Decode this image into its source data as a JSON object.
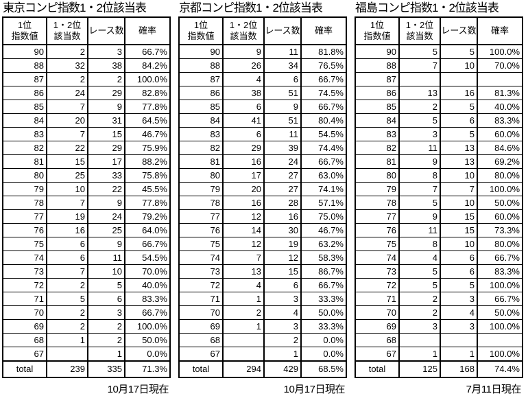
{
  "page": {
    "background": "#ffffff",
    "text_color": "#000000",
    "border_color": "#000000"
  },
  "header_labels": {
    "col1_line1": "1位",
    "col1_line2": "指数値",
    "col2_line1": "1・2位",
    "col2_line2": "該当数",
    "col3": "レース数",
    "col4": "確率"
  },
  "tables": [
    {
      "title": "東京コンピ指数1・2位該当表",
      "as_of_date": "10月17日現在",
      "rows": [
        [
          "90",
          "2",
          "3",
          "66.7%"
        ],
        [
          "88",
          "32",
          "38",
          "84.2%"
        ],
        [
          "87",
          "2",
          "2",
          "100.0%"
        ],
        [
          "86",
          "24",
          "29",
          "82.8%"
        ],
        [
          "85",
          "7",
          "9",
          "77.8%"
        ],
        [
          "84",
          "20",
          "31",
          "64.5%"
        ],
        [
          "83",
          "7",
          "15",
          "46.7%"
        ],
        [
          "82",
          "22",
          "29",
          "75.9%"
        ],
        [
          "81",
          "15",
          "17",
          "88.2%"
        ],
        [
          "80",
          "25",
          "33",
          "75.8%"
        ],
        [
          "79",
          "10",
          "22",
          "45.5%"
        ],
        [
          "78",
          "7",
          "9",
          "77.8%"
        ],
        [
          "77",
          "19",
          "24",
          "79.2%"
        ],
        [
          "76",
          "16",
          "25",
          "64.0%"
        ],
        [
          "75",
          "6",
          "9",
          "66.7%"
        ],
        [
          "74",
          "6",
          "11",
          "54.5%"
        ],
        [
          "73",
          "7",
          "10",
          "70.0%"
        ],
        [
          "72",
          "2",
          "5",
          "40.0%"
        ],
        [
          "71",
          "5",
          "6",
          "83.3%"
        ],
        [
          "70",
          "2",
          "3",
          "66.7%"
        ],
        [
          "69",
          "2",
          "2",
          "100.0%"
        ],
        [
          "68",
          "1",
          "2",
          "50.0%"
        ],
        [
          "67",
          "",
          "1",
          "0.0%"
        ]
      ],
      "total_row": [
        "total",
        "239",
        "335",
        "71.3%"
      ]
    },
    {
      "title": "京都コンピ指数1・2位該当表",
      "as_of_date": "10月17日現在",
      "rows": [
        [
          "90",
          "9",
          "11",
          "81.8%"
        ],
        [
          "88",
          "26",
          "34",
          "76.5%"
        ],
        [
          "87",
          "4",
          "6",
          "66.7%"
        ],
        [
          "86",
          "38",
          "51",
          "74.5%"
        ],
        [
          "85",
          "6",
          "9",
          "66.7%"
        ],
        [
          "84",
          "41",
          "51",
          "80.4%"
        ],
        [
          "83",
          "6",
          "11",
          "54.5%"
        ],
        [
          "82",
          "29",
          "39",
          "74.4%"
        ],
        [
          "81",
          "16",
          "24",
          "66.7%"
        ],
        [
          "80",
          "17",
          "27",
          "63.0%"
        ],
        [
          "79",
          "20",
          "27",
          "74.1%"
        ],
        [
          "78",
          "16",
          "28",
          "57.1%"
        ],
        [
          "77",
          "12",
          "16",
          "75.0%"
        ],
        [
          "76",
          "14",
          "30",
          "46.7%"
        ],
        [
          "75",
          "12",
          "19",
          "63.2%"
        ],
        [
          "74",
          "7",
          "12",
          "58.3%"
        ],
        [
          "73",
          "13",
          "15",
          "86.7%"
        ],
        [
          "72",
          "4",
          "6",
          "66.7%"
        ],
        [
          "71",
          "1",
          "3",
          "33.3%"
        ],
        [
          "70",
          "2",
          "4",
          "50.0%"
        ],
        [
          "69",
          "1",
          "3",
          "33.3%"
        ],
        [
          "68",
          "",
          "2",
          "0.0%"
        ],
        [
          "67",
          "",
          "1",
          "0.0%"
        ]
      ],
      "total_row": [
        "total",
        "294",
        "429",
        "68.5%"
      ]
    },
    {
      "title": "福島コンピ指数1・2位該当表",
      "as_of_date": "7月11日現在",
      "rows": [
        [
          "90",
          "5",
          "5",
          "100.0%"
        ],
        [
          "88",
          "7",
          "10",
          "70.0%"
        ],
        [
          "87",
          "",
          "",
          ""
        ],
        [
          "86",
          "13",
          "16",
          "81.3%"
        ],
        [
          "85",
          "2",
          "5",
          "40.0%"
        ],
        [
          "84",
          "5",
          "6",
          "83.3%"
        ],
        [
          "83",
          "3",
          "5",
          "60.0%"
        ],
        [
          "82",
          "11",
          "13",
          "84.6%"
        ],
        [
          "81",
          "9",
          "13",
          "69.2%"
        ],
        [
          "80",
          "8",
          "10",
          "80.0%"
        ],
        [
          "79",
          "7",
          "7",
          "100.0%"
        ],
        [
          "78",
          "5",
          "10",
          "50.0%"
        ],
        [
          "77",
          "9",
          "15",
          "60.0%"
        ],
        [
          "76",
          "11",
          "15",
          "73.3%"
        ],
        [
          "75",
          "8",
          "10",
          "80.0%"
        ],
        [
          "74",
          "4",
          "6",
          "66.7%"
        ],
        [
          "73",
          "5",
          "6",
          "83.3%"
        ],
        [
          "72",
          "5",
          "5",
          "100.0%"
        ],
        [
          "71",
          "2",
          "3",
          "66.7%"
        ],
        [
          "70",
          "2",
          "4",
          "50.0%"
        ],
        [
          "69",
          "3",
          "3",
          "100.0%"
        ],
        [
          "68",
          "",
          "",
          ""
        ],
        [
          "67",
          "1",
          "1",
          "100.0%"
        ]
      ],
      "total_row": [
        "total",
        "125",
        "168",
        "74.4%"
      ]
    }
  ]
}
